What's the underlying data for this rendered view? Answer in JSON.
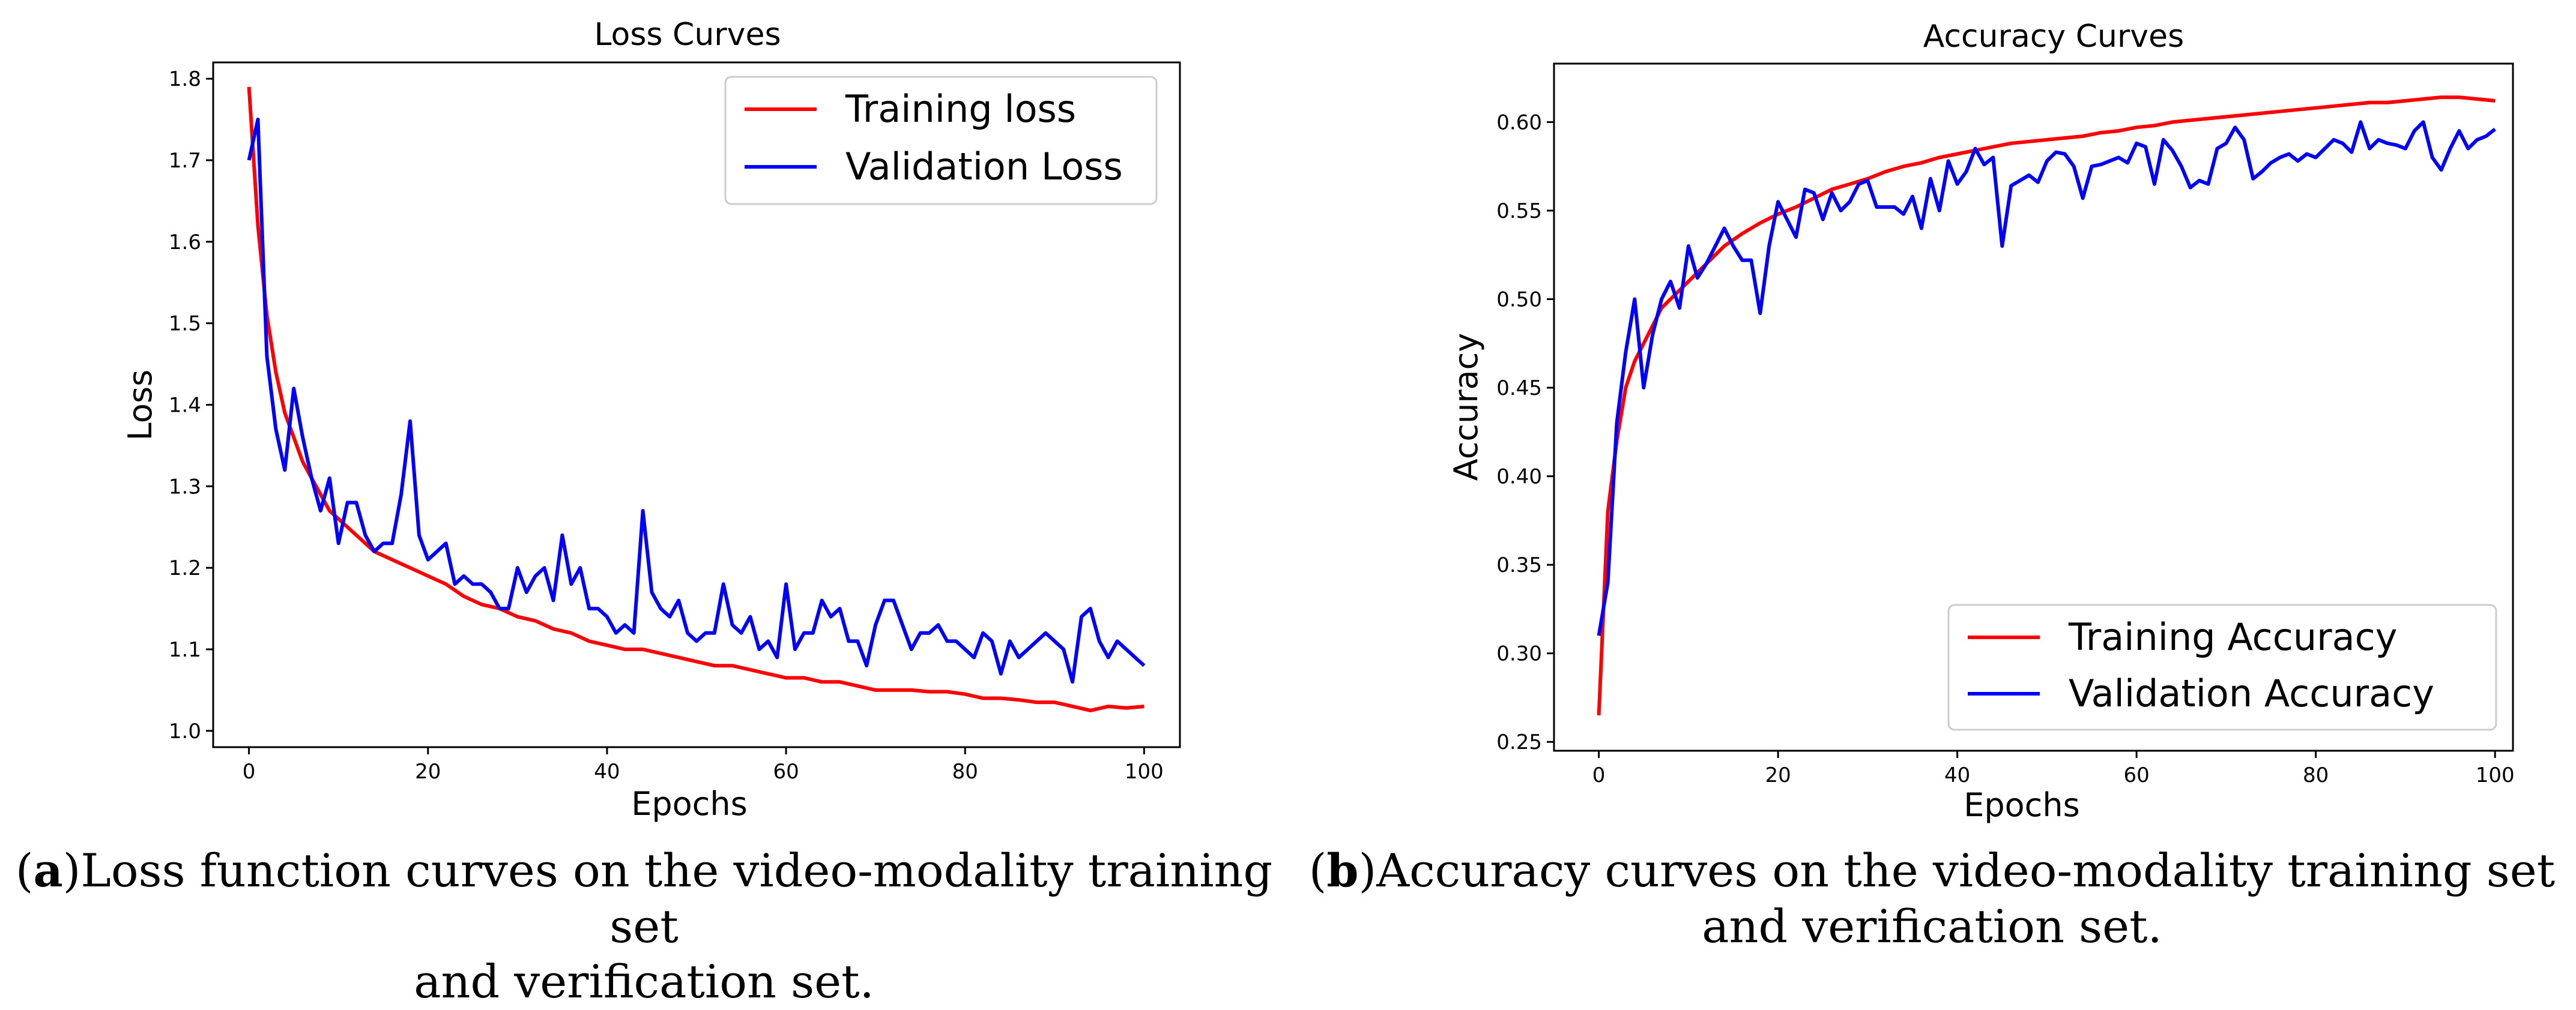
{
  "captions": [
    {
      "letter": "a",
      "line1": ")Loss function curves on the video-modality training set",
      "line2": "and verification set."
    },
    {
      "letter": "b",
      "line1": ")Accuracy curves on the video-modality training set",
      "line2": "and verification set."
    }
  ],
  "chart_data": [
    {
      "type": "line",
      "title": "Loss Curves",
      "xlabel": "Epochs",
      "ylabel": "Loss",
      "xlim": [
        -4,
        104
      ],
      "ylim": [
        0.98,
        1.82
      ],
      "xticks": [
        0,
        20,
        40,
        60,
        80,
        100
      ],
      "xtick_labels": [
        "0",
        "20",
        "40",
        "60",
        "80",
        "100"
      ],
      "yticks": [
        1.0,
        1.1,
        1.2,
        1.3,
        1.4,
        1.5,
        1.6,
        1.7,
        1.8
      ],
      "ytick_labels": [
        "1.0",
        "1.1",
        "1.2",
        "1.3",
        "1.4",
        "1.5",
        "1.6",
        "1.7",
        "1.8"
      ],
      "legend_position": "top-right",
      "series": [
        {
          "name": "Training loss",
          "color": "#ff0000",
          "x": [
            0,
            1,
            2,
            3,
            4,
            5,
            6,
            7,
            8,
            9,
            10,
            12,
            14,
            16,
            18,
            20,
            22,
            24,
            26,
            28,
            30,
            32,
            34,
            36,
            38,
            40,
            42,
            44,
            46,
            48,
            50,
            52,
            54,
            56,
            58,
            60,
            62,
            64,
            66,
            68,
            70,
            72,
            74,
            76,
            78,
            80,
            82,
            84,
            86,
            88,
            90,
            92,
            94,
            96,
            98,
            100
          ],
          "values": [
            1.79,
            1.62,
            1.51,
            1.44,
            1.39,
            1.36,
            1.33,
            1.31,
            1.29,
            1.27,
            1.26,
            1.24,
            1.22,
            1.21,
            1.2,
            1.19,
            1.18,
            1.165,
            1.155,
            1.15,
            1.14,
            1.135,
            1.125,
            1.12,
            1.11,
            1.105,
            1.1,
            1.1,
            1.095,
            1.09,
            1.085,
            1.08,
            1.08,
            1.075,
            1.07,
            1.065,
            1.065,
            1.06,
            1.06,
            1.055,
            1.05,
            1.05,
            1.05,
            1.048,
            1.048,
            1.045,
            1.04,
            1.04,
            1.038,
            1.035,
            1.035,
            1.03,
            1.025,
            1.03,
            1.028,
            1.03
          ]
        },
        {
          "name": "Validation Loss",
          "color": "#0000ff",
          "x": [
            0,
            1,
            2,
            3,
            4,
            5,
            6,
            7,
            8,
            9,
            10,
            11,
            12,
            13,
            14,
            15,
            16,
            17,
            18,
            19,
            20,
            21,
            22,
            23,
            24,
            25,
            26,
            27,
            28,
            29,
            30,
            31,
            32,
            33,
            34,
            35,
            36,
            37,
            38,
            39,
            40,
            41,
            42,
            43,
            44,
            45,
            46,
            47,
            48,
            49,
            50,
            51,
            52,
            53,
            54,
            55,
            56,
            57,
            58,
            59,
            60,
            61,
            62,
            63,
            64,
            65,
            66,
            67,
            68,
            69,
            70,
            71,
            72,
            73,
            74,
            75,
            76,
            77,
            78,
            79,
            80,
            81,
            82,
            83,
            84,
            85,
            86,
            87,
            88,
            89,
            90,
            91,
            92,
            93,
            94,
            95,
            96,
            97,
            98,
            99,
            100
          ],
          "values": [
            1.7,
            1.75,
            1.46,
            1.37,
            1.32,
            1.42,
            1.36,
            1.31,
            1.27,
            1.31,
            1.23,
            1.28,
            1.28,
            1.24,
            1.22,
            1.23,
            1.23,
            1.29,
            1.38,
            1.24,
            1.21,
            1.22,
            1.23,
            1.18,
            1.19,
            1.18,
            1.18,
            1.17,
            1.15,
            1.15,
            1.2,
            1.17,
            1.19,
            1.2,
            1.16,
            1.24,
            1.18,
            1.2,
            1.15,
            1.15,
            1.14,
            1.12,
            1.13,
            1.12,
            1.27,
            1.17,
            1.15,
            1.14,
            1.16,
            1.12,
            1.11,
            1.12,
            1.12,
            1.18,
            1.13,
            1.12,
            1.14,
            1.1,
            1.11,
            1.09,
            1.18,
            1.1,
            1.12,
            1.12,
            1.16,
            1.14,
            1.15,
            1.11,
            1.11,
            1.08,
            1.13,
            1.16,
            1.16,
            1.13,
            1.1,
            1.12,
            1.12,
            1.13,
            1.11,
            1.11,
            1.1,
            1.09,
            1.12,
            1.11,
            1.07,
            1.11,
            1.09,
            1.1,
            1.11,
            1.12,
            1.11,
            1.1,
            1.06,
            1.14,
            1.15,
            1.11,
            1.09,
            1.11,
            1.1,
            1.09,
            1.08
          ]
        }
      ]
    },
    {
      "type": "line",
      "title": "Accuracy Curves",
      "xlabel": "Epochs",
      "ylabel": "Accuracy",
      "xlim": [
        -5,
        102
      ],
      "ylim": [
        0.245,
        0.633
      ],
      "xticks": [
        0,
        20,
        40,
        60,
        80,
        100
      ],
      "xtick_labels": [
        "0",
        "20",
        "40",
        "60",
        "80",
        "100"
      ],
      "yticks": [
        0.25,
        0.3,
        0.35,
        0.4,
        0.45,
        0.5,
        0.55,
        0.6
      ],
      "ytick_labels": [
        "0.25",
        "0.30",
        "0.35",
        "0.40",
        "0.45",
        "0.50",
        "0.55",
        "0.60"
      ],
      "legend_position": "bottom-right",
      "series": [
        {
          "name": "Training Accuracy",
          "color": "#ff0000",
          "x": [
            0,
            1,
            2,
            3,
            4,
            5,
            6,
            7,
            8,
            9,
            10,
            12,
            14,
            16,
            18,
            20,
            22,
            24,
            26,
            28,
            30,
            32,
            34,
            36,
            38,
            40,
            42,
            44,
            46,
            48,
            50,
            52,
            54,
            56,
            58,
            60,
            62,
            64,
            66,
            68,
            70,
            72,
            74,
            76,
            78,
            80,
            82,
            84,
            86,
            88,
            90,
            92,
            94,
            96,
            98,
            100
          ],
          "values": [
            0.265,
            0.38,
            0.42,
            0.45,
            0.465,
            0.475,
            0.485,
            0.495,
            0.5,
            0.505,
            0.51,
            0.52,
            0.53,
            0.537,
            0.543,
            0.548,
            0.552,
            0.557,
            0.562,
            0.565,
            0.568,
            0.572,
            0.575,
            0.577,
            0.58,
            0.582,
            0.584,
            0.586,
            0.588,
            0.589,
            0.59,
            0.591,
            0.592,
            0.594,
            0.595,
            0.597,
            0.598,
            0.6,
            0.601,
            0.602,
            0.603,
            0.604,
            0.605,
            0.606,
            0.607,
            0.608,
            0.609,
            0.61,
            0.611,
            0.611,
            0.612,
            0.613,
            0.614,
            0.614,
            0.613,
            0.612
          ]
        },
        {
          "name": "Validation Accuracy",
          "color": "#0000ff",
          "x": [
            0,
            1,
            2,
            3,
            4,
            5,
            6,
            7,
            8,
            9,
            10,
            11,
            12,
            13,
            14,
            15,
            16,
            17,
            18,
            19,
            20,
            21,
            22,
            23,
            24,
            25,
            26,
            27,
            28,
            29,
            30,
            31,
            32,
            33,
            34,
            35,
            36,
            37,
            38,
            39,
            40,
            41,
            42,
            43,
            44,
            45,
            46,
            47,
            48,
            49,
            50,
            51,
            52,
            53,
            54,
            55,
            56,
            57,
            58,
            59,
            60,
            61,
            62,
            63,
            64,
            65,
            66,
            67,
            68,
            69,
            70,
            71,
            72,
            73,
            74,
            75,
            76,
            77,
            78,
            79,
            80,
            81,
            82,
            83,
            84,
            85,
            86,
            87,
            88,
            89,
            90,
            91,
            92,
            93,
            94,
            95,
            96,
            97,
            98,
            99,
            100
          ],
          "values": [
            0.31,
            0.34,
            0.43,
            0.47,
            0.5,
            0.45,
            0.48,
            0.5,
            0.51,
            0.495,
            0.53,
            0.512,
            0.52,
            0.53,
            0.54,
            0.53,
            0.522,
            0.522,
            0.492,
            0.53,
            0.555,
            0.545,
            0.535,
            0.562,
            0.56,
            0.545,
            0.56,
            0.55,
            0.555,
            0.565,
            0.567,
            0.552,
            0.552,
            0.552,
            0.548,
            0.558,
            0.54,
            0.568,
            0.55,
            0.578,
            0.565,
            0.572,
            0.585,
            0.576,
            0.58,
            0.53,
            0.564,
            0.567,
            0.57,
            0.566,
            0.578,
            0.583,
            0.582,
            0.575,
            0.557,
            0.575,
            0.576,
            0.578,
            0.58,
            0.577,
            0.588,
            0.586,
            0.565,
            0.59,
            0.584,
            0.575,
            0.563,
            0.567,
            0.565,
            0.585,
            0.588,
            0.597,
            0.59,
            0.568,
            0.572,
            0.577,
            0.58,
            0.582,
            0.578,
            0.582,
            0.58,
            0.585,
            0.59,
            0.588,
            0.583,
            0.6,
            0.585,
            0.59,
            0.588,
            0.587,
            0.585,
            0.595,
            0.6,
            0.58,
            0.573,
            0.585,
            0.595,
            0.585,
            0.59,
            0.592,
            0.596
          ]
        }
      ]
    }
  ]
}
